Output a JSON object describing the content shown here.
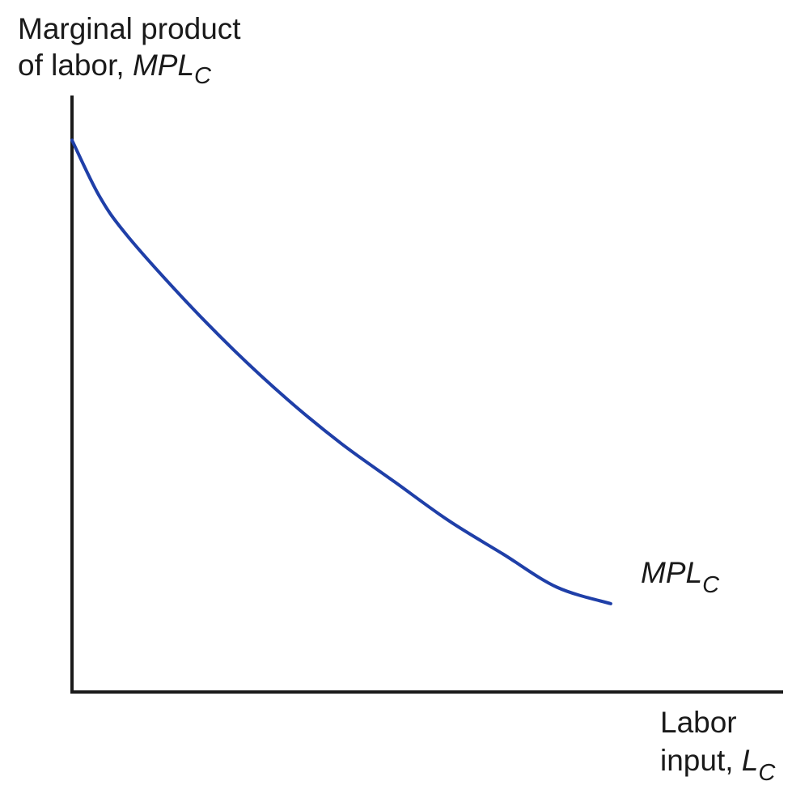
{
  "chart_data": {
    "type": "line",
    "ylabel": {
      "line1": "Marginal product",
      "line2_prefix": "of labor, ",
      "line2_var": "MPL",
      "line2_sub": "C"
    },
    "xlabel": {
      "line1": "Labor",
      "line2_prefix": "input, ",
      "line2_var": "L",
      "line2_sub": "C"
    },
    "series": [
      {
        "name_var": "MPL",
        "name_sub": "C",
        "color": "#1f3fa8",
        "x": [
          0,
          0.05,
          0.1,
          0.2,
          0.3,
          0.4,
          0.5,
          0.6,
          0.7,
          0.8,
          0.9,
          1.0
        ],
        "y": [
          1.0,
          0.9,
          0.83,
          0.72,
          0.62,
          0.53,
          0.45,
          0.38,
          0.31,
          0.25,
          0.19,
          0.16
        ]
      }
    ],
    "xlim": [
      0,
      1.32
    ],
    "ylim": [
      0,
      1.1
    ],
    "grid": false,
    "ticks": false,
    "axis_color": "#1a1a1a"
  }
}
